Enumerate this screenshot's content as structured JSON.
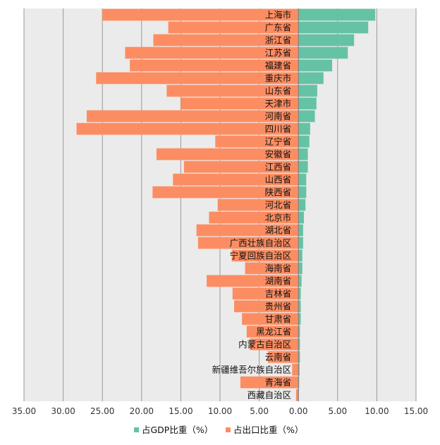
{
  "chart_data": {
    "type": "bar",
    "orientation": "horizontal-diverging",
    "categories": [
      "上海市",
      "广东省",
      "浙江省",
      "江苏省",
      "福建省",
      "重庆市",
      "山东省",
      "天津市",
      "河南省",
      "四川省",
      "辽宁省",
      "安徽省",
      "江西省",
      "山西省",
      "陕西省",
      "河北省",
      "北京市",
      "湖北省",
      "广西壮族自治区",
      "宁夏回族自治区",
      "海南省",
      "湖南省",
      "吉林省",
      "贵州省",
      "甘肃省",
      "黑龙江省",
      "内蒙古自治区",
      "云南省",
      "新疆维吾尔族自治区",
      "青海省",
      "西藏自治区"
    ],
    "series": [
      {
        "name": "占GDP比重（%）",
        "color": "#66c2a5",
        "direction": "right",
        "values": [
          9.8,
          8.9,
          7.1,
          6.3,
          4.3,
          3.2,
          2.4,
          2.3,
          2.1,
          1.5,
          1.4,
          1.2,
          1.2,
          1.0,
          1.0,
          0.9,
          0.7,
          0.6,
          0.6,
          0.5,
          0.5,
          0.4,
          0.3,
          0.3,
          0.3,
          0.2,
          0.2,
          0.2,
          0.15,
          0.1,
          0.05
        ]
      },
      {
        "name": "占出口比重（%）",
        "color": "#fc8d62",
        "direction": "left",
        "values": [
          25.0,
          16.6,
          18.5,
          22.1,
          21.5,
          25.8,
          16.8,
          15.0,
          27.0,
          28.3,
          10.6,
          18.1,
          14.6,
          16.0,
          18.6,
          10.3,
          11.4,
          13.0,
          12.8,
          8.5,
          6.8,
          11.7,
          8.4,
          8.2,
          7.2,
          6.6,
          6.2,
          3.9,
          0.8,
          7.4,
          0.3
        ]
      }
    ],
    "xlim": [
      -35,
      15
    ],
    "xticks": [
      "35.00",
      "30.00",
      "25.00",
      "20.00",
      "15.00",
      "10.00",
      "5.00",
      "0.00",
      "5.00",
      "10.00",
      "15.00"
    ],
    "grid": "vertical",
    "legend_position": "bottom"
  }
}
